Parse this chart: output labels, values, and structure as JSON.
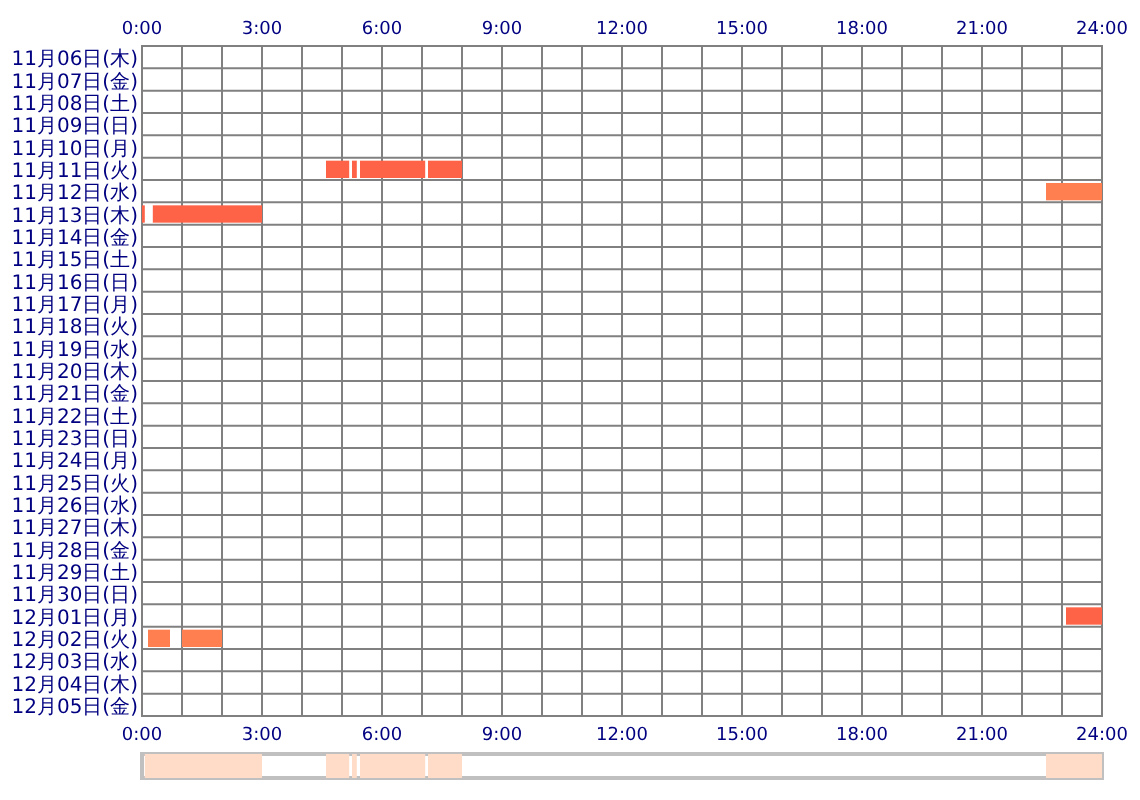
{
  "chart_data": [
    {
      "type": "bar",
      "orientation": "horizontal",
      "grid": true,
      "categories": [
        "11月06日(木)",
        "11月07日(金)",
        "11月08日(土)",
        "11月09日(日)",
        "11月10日(月)",
        "11月11日(火)",
        "11月12日(水)",
        "11月13日(木)",
        "11月14日(金)",
        "11月15日(土)",
        "11月16日(日)",
        "11月17日(月)",
        "11月18日(火)",
        "11月19日(水)",
        "11月20日(木)",
        "11月21日(金)",
        "11月22日(土)",
        "11月23日(日)",
        "11月24日(月)",
        "11月25日(火)",
        "11月26日(水)",
        "11月27日(木)",
        "11月28日(金)",
        "11月29日(土)",
        "11月30日(日)",
        "12月01日(月)",
        "12月02日(火)",
        "12月03日(水)",
        "12月04日(木)",
        "12月05日(金)"
      ],
      "series": [
        {
          "color": "#ff6347",
          "colors": [
            null,
            null,
            null,
            null,
            null,
            null,
            "#ff7f50",
            null,
            null,
            null,
            null,
            null,
            null,
            null,
            null,
            null,
            null,
            null,
            null,
            null,
            null,
            null,
            null,
            null,
            null,
            null,
            "#ff7f50",
            null,
            null,
            null
          ],
          "base": [
            null,
            null,
            null,
            null,
            null,
            4.6,
            22.6,
            0,
            null,
            null,
            null,
            null,
            null,
            null,
            null,
            null,
            null,
            null,
            null,
            null,
            null,
            null,
            null,
            null,
            null,
            23.1,
            0.15,
            null,
            null,
            null
          ],
          "values": [
            null,
            null,
            null,
            null,
            null,
            0.58,
            0.4,
            0.07,
            null,
            null,
            null,
            null,
            null,
            null,
            null,
            null,
            null,
            null,
            null,
            null,
            null,
            null,
            null,
            null,
            null,
            0.9,
            0.55,
            null,
            null,
            null
          ]
        },
        {
          "color": "#ff6347",
          "colors": [
            null,
            null,
            null,
            null,
            null,
            null,
            "#ff7f50",
            null,
            null,
            null,
            null,
            null,
            null,
            null,
            null,
            null,
            null,
            null,
            null,
            null,
            null,
            null,
            null,
            null,
            null,
            null,
            "#ff7f50",
            null,
            null,
            null
          ],
          "base": [
            null,
            null,
            null,
            null,
            null,
            5.25,
            23.0,
            0.27,
            null,
            null,
            null,
            null,
            null,
            null,
            null,
            null,
            null,
            null,
            null,
            null,
            null,
            null,
            null,
            null,
            null,
            null,
            1.0,
            null,
            null,
            null
          ],
          "values": [
            null,
            null,
            null,
            null,
            null,
            0.12,
            1.0,
            2.73,
            null,
            null,
            null,
            null,
            null,
            null,
            null,
            null,
            null,
            null,
            null,
            null,
            null,
            null,
            null,
            null,
            null,
            null,
            1.0,
            null,
            null,
            null
          ]
        },
        {
          "color": "#ff6347",
          "base": [
            null,
            null,
            null,
            null,
            null,
            5.45,
            null,
            null,
            null,
            null,
            null,
            null,
            null,
            null,
            null,
            null,
            null,
            null,
            null,
            null,
            null,
            null,
            null,
            null,
            null,
            null,
            null,
            null,
            null,
            null
          ],
          "values": [
            null,
            null,
            null,
            null,
            null,
            1.63,
            null,
            null,
            null,
            null,
            null,
            null,
            null,
            null,
            null,
            null,
            null,
            null,
            null,
            null,
            null,
            null,
            null,
            null,
            null,
            null,
            null,
            null,
            null,
            null
          ]
        },
        {
          "color": "#ff6347",
          "base": [
            null,
            null,
            null,
            null,
            null,
            7.15,
            null,
            null,
            null,
            null,
            null,
            null,
            null,
            null,
            null,
            null,
            null,
            null,
            null,
            null,
            null,
            null,
            null,
            null,
            null,
            null,
            null,
            null,
            null,
            null
          ],
          "values": [
            null,
            null,
            null,
            null,
            null,
            0.85,
            null,
            null,
            null,
            null,
            null,
            null,
            null,
            null,
            null,
            null,
            null,
            null,
            null,
            null,
            null,
            null,
            null,
            null,
            null,
            null,
            null,
            null,
            null,
            null
          ]
        }
      ],
      "xlim": [
        0,
        24
      ],
      "xticks": [
        {
          "value": 0,
          "label": "0:00"
        },
        {
          "value": 1,
          "label": null
        },
        {
          "value": 2,
          "label": null
        },
        {
          "value": 3,
          "label": "3:00"
        },
        {
          "value": 4,
          "label": null
        },
        {
          "value": 5,
          "label": null
        },
        {
          "value": 6,
          "label": "6:00"
        },
        {
          "value": 7,
          "label": null
        },
        {
          "value": 8,
          "label": null
        },
        {
          "value": 9,
          "label": "9:00"
        },
        {
          "value": 10,
          "label": null
        },
        {
          "value": 11,
          "label": null
        },
        {
          "value": 12,
          "label": "12:00"
        },
        {
          "value": 13,
          "label": null
        },
        {
          "value": 14,
          "label": null
        },
        {
          "value": 15,
          "label": "15:00"
        },
        {
          "value": 16,
          "label": null
        },
        {
          "value": 17,
          "label": null
        },
        {
          "value": 18,
          "label": "18:00"
        },
        {
          "value": 19,
          "label": null
        },
        {
          "value": 20,
          "label": null
        },
        {
          "value": 21,
          "label": "21:00"
        },
        {
          "value": 22,
          "label": null
        },
        {
          "value": 23,
          "label": null
        },
        {
          "value": 24,
          "label": "24:00"
        }
      ],
      "x2lim": [
        0,
        24
      ],
      "x2ticks": [
        {
          "value": 0,
          "label": "0:00"
        },
        {
          "value": 3,
          "label": "3:00"
        },
        {
          "value": 6,
          "label": "6:00"
        },
        {
          "value": 9,
          "label": "9:00"
        },
        {
          "value": 12,
          "label": "12:00"
        },
        {
          "value": 15,
          "label": "15:00"
        },
        {
          "value": 18,
          "label": "18:00"
        },
        {
          "value": 21,
          "label": "21:00"
        },
        {
          "value": 24,
          "label": "24:00"
        }
      ]
    },
    {
      "type": "bar",
      "orientation": "horizontal",
      "categories": [
        null
      ],
      "xlim": [
        0,
        24
      ],
      "series": [
        {
          "color": "#ffdcc8",
          "base": [
            0.07
          ],
          "values": [
            2.93
          ]
        },
        {
          "color": "#ffdcc8",
          "base": [
            4.6
          ],
          "values": [
            0.58
          ]
        },
        {
          "color": "#ffdcc8",
          "base": [
            5.25
          ],
          "values": [
            0.12
          ]
        },
        {
          "color": "#ffdcc8",
          "base": [
            5.45
          ],
          "values": [
            1.63
          ]
        },
        {
          "color": "#ffdcc8",
          "base": [
            7.15
          ],
          "values": [
            0.85
          ]
        },
        {
          "color": "#ffdcc8",
          "base": [
            22.6
          ],
          "values": [
            1.4
          ]
        }
      ]
    }
  ]
}
